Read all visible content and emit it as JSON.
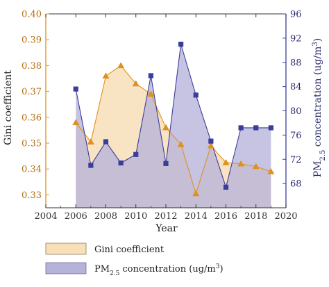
{
  "chart_data": {
    "type": "line",
    "xlabel": "Year",
    "ylabel": "Gini coefficient",
    "ylabel_right": "PM",
    "ylabel_right_sub": "2.5",
    "ylabel_right_suffix": " concentration (ug/m",
    "ylabel_right_sup": "3",
    "ylabel_right_close": ")",
    "xlim": [
      2004,
      2020
    ],
    "ylim": [
      0.325,
      0.4
    ],
    "ylim_right": [
      64,
      96
    ],
    "xticks": [
      2004,
      2006,
      2008,
      2010,
      2012,
      2014,
      2016,
      2018,
      2020
    ],
    "yticks": [
      0.33,
      0.34,
      0.35,
      0.36,
      0.37,
      0.38,
      0.39,
      0.4
    ],
    "yticks_labels": [
      "0.33",
      "0.34",
      "0.35",
      "0.36",
      "0.37",
      "0.38",
      "0.39",
      "0.40"
    ],
    "yticks_right": [
      68,
      72,
      76,
      80,
      84,
      88,
      92,
      96
    ],
    "grid": false,
    "legend_position": "bottom",
    "series": [
      {
        "name": "Gini coefficient",
        "axis": "left",
        "marker": "triangle",
        "line_color": "#e0901e",
        "fill_color": "#f7dfb8",
        "x": [
          2006,
          2007,
          2008,
          2009,
          2010,
          2011,
          2012,
          2013,
          2014,
          2015,
          2016,
          2017,
          2018,
          2019
        ],
        "values": [
          0.358,
          0.3505,
          0.376,
          0.38,
          0.373,
          0.369,
          0.356,
          0.3495,
          0.3305,
          0.349,
          0.3425,
          0.342,
          0.341,
          0.339
        ]
      },
      {
        "name_prefix": "PM",
        "name_sub": "2.5",
        "name_suffix": " concentration (ug/m",
        "name_sup": "3",
        "name_close": ")",
        "axis": "right",
        "marker": "square",
        "line_color": "#3b3d9a",
        "fill_color": "#b6b3da",
        "x": [
          2006,
          2007,
          2008,
          2009,
          2010,
          2011,
          2012,
          2013,
          2014,
          2015,
          2016,
          2017,
          2018,
          2019
        ],
        "values": [
          83.6,
          71.0,
          74.9,
          71.4,
          72.8,
          85.8,
          71.3,
          91.0,
          82.6,
          75.0,
          67.4,
          77.2,
          77.2,
          77.2
        ]
      }
    ]
  }
}
